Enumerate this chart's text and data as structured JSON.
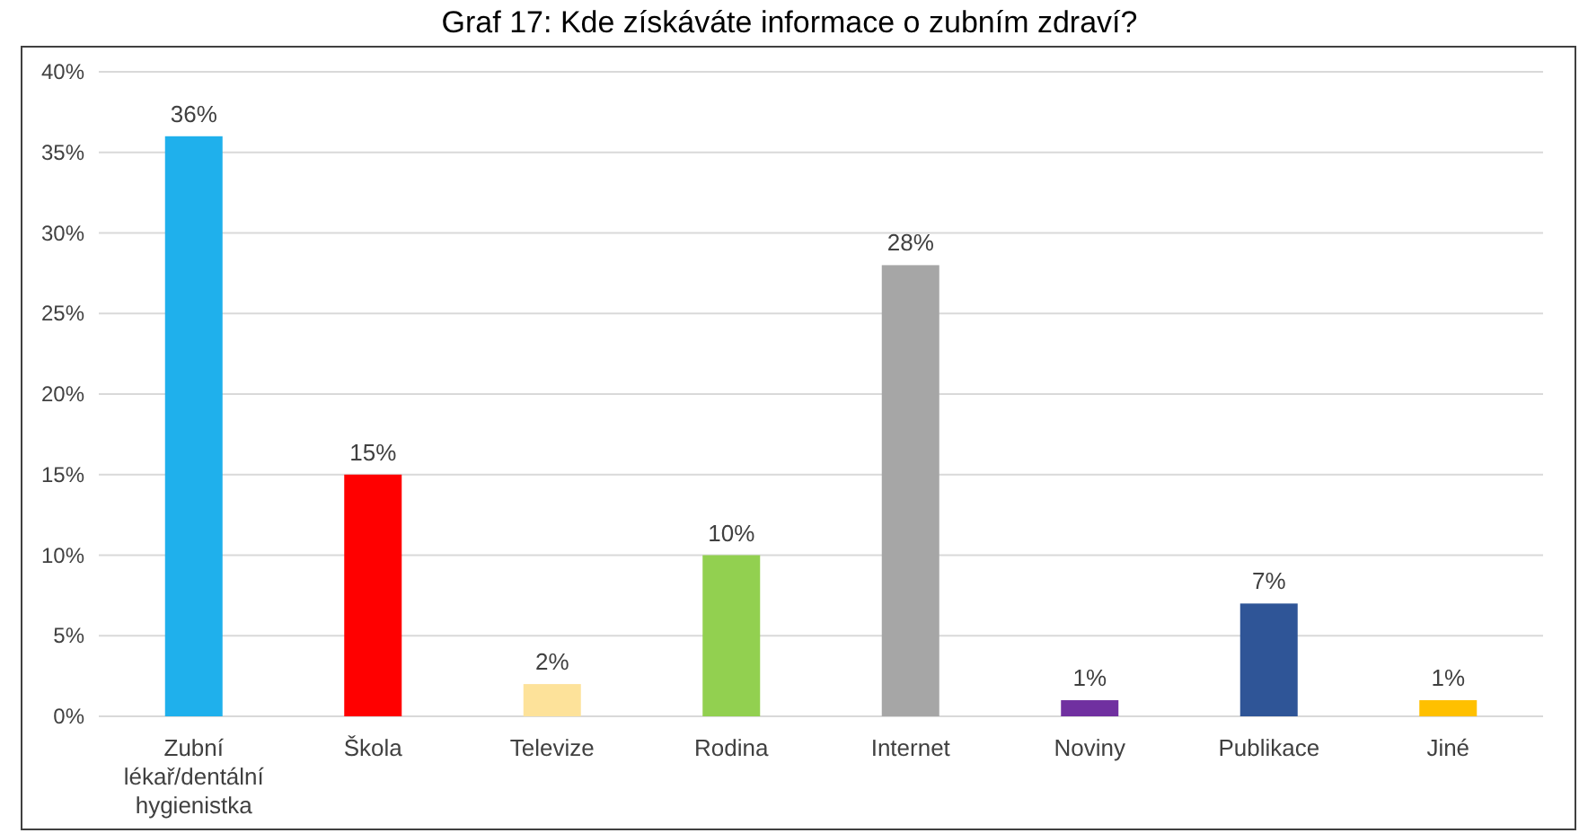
{
  "chart_data": {
    "type": "bar",
    "title": "Graf 17: Kde získáváte informace o zubním zdraví?",
    "categories": [
      "Zubní lékař/dentální hygienistka",
      "Škola",
      "Televize",
      "Rodina",
      "Internet",
      "Noviny",
      "Publikace",
      "Jiné"
    ],
    "values": [
      36,
      15,
      2,
      10,
      28,
      1,
      7,
      1
    ],
    "colors": [
      "#1fb0ec",
      "#ff0000",
      "#fde29a",
      "#92d050",
      "#a6a6a6",
      "#7030a0",
      "#2f5597",
      "#ffc000"
    ],
    "value_labels": [
      "36%",
      "15%",
      "2%",
      "10%",
      "28%",
      "1%",
      "7%",
      "1%"
    ],
    "ylim": [
      0,
      40
    ],
    "yticks": [
      {
        "value": 0,
        "label": "0%"
      },
      {
        "value": 5,
        "label": "5%"
      },
      {
        "value": 10,
        "label": "10%"
      },
      {
        "value": 15,
        "label": "15%"
      },
      {
        "value": 20,
        "label": "20%"
      },
      {
        "value": 25,
        "label": "25%"
      },
      {
        "value": 30,
        "label": "30%"
      },
      {
        "value": 35,
        "label": "35%"
      },
      {
        "value": 40,
        "label": "40%"
      }
    ],
    "grid": "y"
  }
}
